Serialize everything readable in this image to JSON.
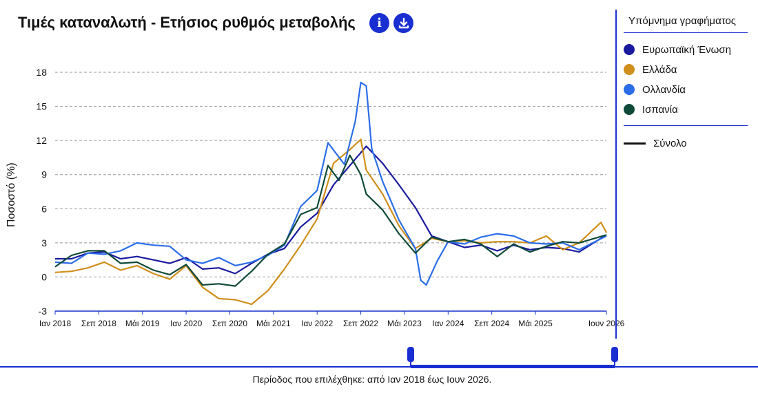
{
  "header": {
    "title": "Τιμές καταναλωτή - Ετήσιος ρυθμός μεταβολής",
    "info_glyph": "i",
    "download_glyph": "⤓"
  },
  "legend": {
    "title": "Υπόμνημα γραφήματος",
    "items": [
      {
        "label": "Ευρωπαϊκή Ένωση",
        "color": "#1a1a9e"
      },
      {
        "label": "Ελλάδα",
        "color": "#d08e1a"
      },
      {
        "label": "Ολλανδία",
        "color": "#2b6de8"
      },
      {
        "label": "Ισπανία",
        "color": "#0f4a38"
      }
    ],
    "total_label": "Σύνολο"
  },
  "footer": {
    "period_text": "Περίοδος που επιλέχθηκε: από Ιαν 2018 έως Ιουν 2026."
  },
  "chart_data": {
    "type": "line",
    "ylabel": "Ποσοστό (%)",
    "ylim": [
      -3,
      18
    ],
    "yticks": [
      -3,
      0,
      3,
      6,
      9,
      12,
      15,
      18
    ],
    "grid": true,
    "x_start": "Ιαν 2018",
    "x_end": "Ιουν 2026",
    "xticks": [
      {
        "label": "Ιαν 2018",
        "month": "2018-01"
      },
      {
        "label": "Σεπ 2018",
        "month": "2018-09"
      },
      {
        "label": "Μάι 2019",
        "month": "2019-05"
      },
      {
        "label": "Ιαν 2020",
        "month": "2020-01"
      },
      {
        "label": "Σεπ 2020",
        "month": "2020-09"
      },
      {
        "label": "Μάι 2021",
        "month": "2021-05"
      },
      {
        "label": "Ιαν 2022",
        "month": "2022-01"
      },
      {
        "label": "Σεπ 2022",
        "month": "2022-09"
      },
      {
        "label": "Μάι 2023",
        "month": "2023-05"
      },
      {
        "label": "Ιαν 2024",
        "month": "2024-01"
      },
      {
        "label": "Σεπ 2024",
        "month": "2024-09"
      },
      {
        "label": "Μάι 2025",
        "month": "2025-05"
      },
      {
        "label": "Ιουν 2026",
        "month": "2026-06"
      }
    ],
    "series": [
      {
        "name": "Ευρωπαϊκή Ένωση",
        "color": "#1a1a9e",
        "points": [
          [
            "2018-01",
            1.6
          ],
          [
            "2018-04",
            1.6
          ],
          [
            "2018-07",
            2.1
          ],
          [
            "2018-10",
            2.2
          ],
          [
            "2019-01",
            1.6
          ],
          [
            "2019-04",
            1.8
          ],
          [
            "2019-07",
            1.5
          ],
          [
            "2019-10",
            1.2
          ],
          [
            "2020-01",
            1.7
          ],
          [
            "2020-04",
            0.7
          ],
          [
            "2020-07",
            0.8
          ],
          [
            "2020-10",
            0.3
          ],
          [
            "2021-01",
            1.2
          ],
          [
            "2021-04",
            2.0
          ],
          [
            "2021-07",
            2.5
          ],
          [
            "2021-10",
            4.4
          ],
          [
            "2022-01",
            5.6
          ],
          [
            "2022-04",
            8.1
          ],
          [
            "2022-07",
            9.8
          ],
          [
            "2022-10",
            11.5
          ],
          [
            "2023-01",
            10.0
          ],
          [
            "2023-04",
            8.1
          ],
          [
            "2023-07",
            6.1
          ],
          [
            "2023-10",
            3.6
          ],
          [
            "2024-01",
            3.1
          ],
          [
            "2024-04",
            2.6
          ],
          [
            "2024-07",
            2.8
          ],
          [
            "2024-10",
            2.3
          ],
          [
            "2025-01",
            2.8
          ],
          [
            "2025-04",
            2.4
          ],
          [
            "2025-07",
            2.6
          ],
          [
            "2025-10",
            2.5
          ],
          [
            "2026-01",
            2.2
          ],
          [
            "2026-06",
            3.7
          ]
        ]
      },
      {
        "name": "Ελλάδα",
        "color": "#d08e1a",
        "points": [
          [
            "2018-01",
            0.4
          ],
          [
            "2018-04",
            0.5
          ],
          [
            "2018-07",
            0.8
          ],
          [
            "2018-10",
            1.3
          ],
          [
            "2019-01",
            0.6
          ],
          [
            "2019-04",
            1.0
          ],
          [
            "2019-07",
            0.3
          ],
          [
            "2019-10",
            -0.2
          ],
          [
            "2020-01",
            1.0
          ],
          [
            "2020-04",
            -0.9
          ],
          [
            "2020-07",
            -1.9
          ],
          [
            "2020-10",
            -2.0
          ],
          [
            "2021-01",
            -2.4
          ],
          [
            "2021-04",
            -1.2
          ],
          [
            "2021-07",
            0.7
          ],
          [
            "2021-10",
            2.8
          ],
          [
            "2022-01",
            5.1
          ],
          [
            "2022-04",
            10.0
          ],
          [
            "2022-07",
            11.2
          ],
          [
            "2022-09",
            12.1
          ],
          [
            "2022-10",
            9.4
          ],
          [
            "2023-01",
            7.3
          ],
          [
            "2023-04",
            4.5
          ],
          [
            "2023-07",
            2.5
          ],
          [
            "2023-10",
            3.4
          ],
          [
            "2024-01",
            3.1
          ],
          [
            "2024-04",
            3.2
          ],
          [
            "2024-07",
            3.0
          ],
          [
            "2024-10",
            3.1
          ],
          [
            "2025-01",
            3.1
          ],
          [
            "2025-04",
            3.0
          ],
          [
            "2025-07",
            3.6
          ],
          [
            "2025-10",
            2.4
          ],
          [
            "2026-01",
            3.0
          ],
          [
            "2026-05",
            4.8
          ],
          [
            "2026-06",
            3.9
          ]
        ]
      },
      {
        "name": "Ολλανδία",
        "color": "#2b6de8",
        "points": [
          [
            "2018-01",
            1.3
          ],
          [
            "2018-04",
            1.2
          ],
          [
            "2018-07",
            2.1
          ],
          [
            "2018-10",
            2.0
          ],
          [
            "2019-01",
            2.3
          ],
          [
            "2019-04",
            3.0
          ],
          [
            "2019-07",
            2.8
          ],
          [
            "2019-10",
            2.7
          ],
          [
            "2020-01",
            1.5
          ],
          [
            "2020-04",
            1.2
          ],
          [
            "2020-07",
            1.7
          ],
          [
            "2020-10",
            1.0
          ],
          [
            "2021-01",
            1.3
          ],
          [
            "2021-04",
            1.9
          ],
          [
            "2021-07",
            2.8
          ],
          [
            "2021-10",
            6.2
          ],
          [
            "2022-01",
            7.6
          ],
          [
            "2022-03",
            11.8
          ],
          [
            "2022-06",
            9.9
          ],
          [
            "2022-08",
            13.7
          ],
          [
            "2022-09",
            17.1
          ],
          [
            "2022-10",
            16.8
          ],
          [
            "2022-11",
            11.3
          ],
          [
            "2023-01",
            8.4
          ],
          [
            "2023-04",
            5.0
          ],
          [
            "2023-07",
            2.5
          ],
          [
            "2023-08",
            -0.3
          ],
          [
            "2023-09",
            -0.7
          ],
          [
            "2023-11",
            1.4
          ],
          [
            "2024-01",
            3.1
          ],
          [
            "2024-04",
            2.9
          ],
          [
            "2024-07",
            3.5
          ],
          [
            "2024-10",
            3.8
          ],
          [
            "2025-01",
            3.6
          ],
          [
            "2025-04",
            3.0
          ],
          [
            "2025-07",
            2.9
          ],
          [
            "2025-10",
            3.0
          ],
          [
            "2026-01",
            2.4
          ],
          [
            "2026-06",
            3.6
          ]
        ]
      },
      {
        "name": "Ισπανία",
        "color": "#0f4a38",
        "points": [
          [
            "2018-01",
            0.9
          ],
          [
            "2018-04",
            1.9
          ],
          [
            "2018-07",
            2.3
          ],
          [
            "2018-10",
            2.3
          ],
          [
            "2019-01",
            1.2
          ],
          [
            "2019-04",
            1.3
          ],
          [
            "2019-07",
            0.6
          ],
          [
            "2019-10",
            0.2
          ],
          [
            "2020-01",
            1.1
          ],
          [
            "2020-04",
            -0.7
          ],
          [
            "2020-07",
            -0.6
          ],
          [
            "2020-10",
            -0.8
          ],
          [
            "2021-01",
            0.5
          ],
          [
            "2021-04",
            2.0
          ],
          [
            "2021-07",
            2.9
          ],
          [
            "2021-10",
            5.5
          ],
          [
            "2022-01",
            6.1
          ],
          [
            "2022-03",
            9.8
          ],
          [
            "2022-05",
            8.5
          ],
          [
            "2022-07",
            10.7
          ],
          [
            "2022-09",
            9.0
          ],
          [
            "2022-10",
            7.3
          ],
          [
            "2023-01",
            5.9
          ],
          [
            "2023-04",
            3.8
          ],
          [
            "2023-07",
            2.1
          ],
          [
            "2023-10",
            3.5
          ],
          [
            "2024-01",
            3.1
          ],
          [
            "2024-04",
            3.3
          ],
          [
            "2024-07",
            2.9
          ],
          [
            "2024-10",
            1.8
          ],
          [
            "2025-01",
            2.9
          ],
          [
            "2025-04",
            2.2
          ],
          [
            "2025-07",
            2.7
          ],
          [
            "2025-10",
            3.1
          ],
          [
            "2026-01",
            3.0
          ],
          [
            "2026-06",
            3.7
          ]
        ]
      }
    ]
  }
}
